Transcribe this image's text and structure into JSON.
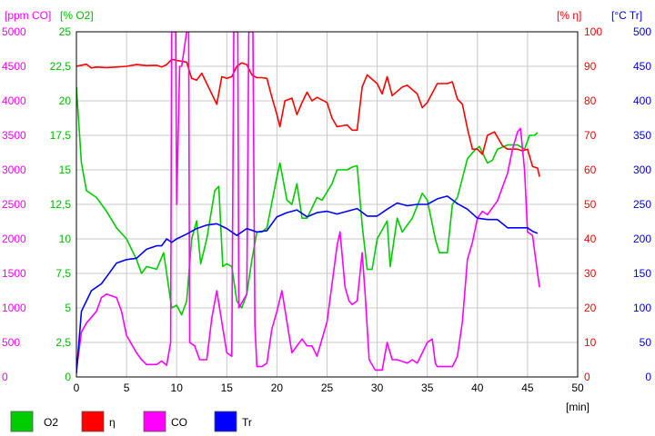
{
  "chart_data": {
    "type": "line",
    "grid": true,
    "legend_placement": "bottom",
    "x": {
      "unit": "[min]",
      "range": [
        0,
        50
      ],
      "ticks": [
        "0",
        "5",
        "10",
        "15",
        "20",
        "25",
        "30",
        "35",
        "40",
        "45",
        "50"
      ]
    },
    "axes": {
      "co": {
        "header": "[ppm CO]",
        "color": "#ff00ff",
        "range": [
          0,
          5000
        ],
        "ticks": [
          "0",
          "500",
          "1000",
          "1500",
          "2000",
          "2500",
          "3000",
          "3500",
          "4000",
          "4500",
          "5000"
        ]
      },
      "o2": {
        "header": "[% O2]",
        "color": "#00bb00",
        "range": [
          0,
          25
        ],
        "ticks": [
          "0",
          "2,5",
          "5",
          "7,5",
          "10",
          "12,5",
          "15",
          "17,5",
          "20",
          "22,5",
          "25"
        ]
      },
      "eta": {
        "header": "[% η]",
        "color": "#ff0000",
        "range": [
          0,
          100
        ],
        "ticks": [
          "0",
          "10",
          "20",
          "30",
          "40",
          "50",
          "60",
          "70",
          "80",
          "90",
          "100"
        ]
      },
      "tr": {
        "header": "[°C Tr]",
        "color": "#0000ff",
        "range": [
          0,
          500
        ],
        "ticks": [
          "0",
          "50",
          "100",
          "150",
          "200",
          "250",
          "300",
          "350",
          "400",
          "450",
          "500"
        ]
      }
    },
    "series": [
      {
        "name": "O2",
        "axis": "o2",
        "color": "#00cc00",
        "points": [
          [
            0,
            21
          ],
          [
            0.5,
            15.5
          ],
          [
            1,
            13.5
          ],
          [
            2,
            13
          ],
          [
            3,
            12
          ],
          [
            4,
            10.8
          ],
          [
            5,
            10
          ],
          [
            6,
            8.5
          ],
          [
            6.5,
            7.5
          ],
          [
            7,
            8
          ],
          [
            8,
            7.8
          ],
          [
            8.7,
            9
          ],
          [
            9,
            7.5
          ],
          [
            9.5,
            5
          ],
          [
            10,
            5.2
          ],
          [
            10.5,
            4.5
          ],
          [
            11,
            5.5
          ],
          [
            11.5,
            10
          ],
          [
            12,
            11.3
          ],
          [
            12.4,
            8.2
          ],
          [
            13,
            10
          ],
          [
            13.8,
            13.5
          ],
          [
            14.2,
            13.8
          ],
          [
            14.6,
            8
          ],
          [
            15,
            8.2
          ],
          [
            15.5,
            8
          ],
          [
            16,
            5.5
          ],
          [
            16.5,
            5
          ],
          [
            17,
            6
          ],
          [
            17.5,
            8.5
          ],
          [
            18,
            10.5
          ],
          [
            18.5,
            10.5
          ],
          [
            19,
            10.8
          ],
          [
            20,
            14.5
          ],
          [
            20.3,
            15.5
          ],
          [
            21,
            12.8
          ],
          [
            21.5,
            12.5
          ],
          [
            22,
            14
          ],
          [
            22.5,
            11.5
          ],
          [
            23,
            11.5
          ],
          [
            24,
            13
          ],
          [
            24.5,
            12.8
          ],
          [
            25.5,
            14
          ],
          [
            26,
            15
          ],
          [
            27,
            15
          ],
          [
            27.5,
            15.2
          ],
          [
            28,
            15.3
          ],
          [
            28.5,
            11
          ],
          [
            29,
            7.8
          ],
          [
            29.5,
            7.8
          ],
          [
            30,
            10
          ],
          [
            31,
            11.3
          ],
          [
            31.3,
            8
          ],
          [
            32,
            11.5
          ],
          [
            32.5,
            10.5
          ],
          [
            33.5,
            11.5
          ],
          [
            34.5,
            13.3
          ],
          [
            35,
            12.8
          ],
          [
            35.8,
            10
          ],
          [
            36.2,
            9
          ],
          [
            37,
            9
          ],
          [
            37.5,
            12.5
          ],
          [
            38,
            13
          ],
          [
            39,
            15.8
          ],
          [
            39.7,
            16.4
          ],
          [
            40.2,
            16.7
          ],
          [
            41,
            15.5
          ],
          [
            41.5,
            15.7
          ],
          [
            42,
            16.5
          ],
          [
            43,
            16.8
          ],
          [
            44,
            16.8
          ],
          [
            44.7,
            16.5
          ],
          [
            45.2,
            17.5
          ],
          [
            45.7,
            17.5
          ],
          [
            46,
            17.7
          ]
        ]
      },
      {
        "name": "η",
        "axis": "eta",
        "color": "#ff0000",
        "points": [
          [
            0,
            90
          ],
          [
            1,
            90.6
          ],
          [
            1.5,
            89.5
          ],
          [
            2,
            89.8
          ],
          [
            3,
            89.6
          ],
          [
            4,
            89.8
          ],
          [
            5,
            90
          ],
          [
            6,
            90.5
          ],
          [
            7,
            90.2
          ],
          [
            8,
            90.3
          ],
          [
            8.5,
            89.8
          ],
          [
            9,
            90.5
          ],
          [
            9.5,
            92
          ],
          [
            10,
            91.7
          ],
          [
            11,
            91.2
          ],
          [
            11.5,
            86.5
          ],
          [
            12,
            86
          ],
          [
            12.5,
            88
          ],
          [
            13.5,
            82
          ],
          [
            14,
            79
          ],
          [
            14.5,
            87
          ],
          [
            15,
            86.5
          ],
          [
            15.5,
            87
          ],
          [
            16,
            90
          ],
          [
            16.5,
            91
          ],
          [
            17,
            90.5
          ],
          [
            17.5,
            87.5
          ],
          [
            18,
            86.7
          ],
          [
            18.5,
            86.7
          ],
          [
            19,
            86.5
          ],
          [
            19.5,
            81
          ],
          [
            20,
            76
          ],
          [
            20.3,
            72.5
          ],
          [
            20.8,
            80
          ],
          [
            21.5,
            80.8
          ],
          [
            22,
            76
          ],
          [
            22.5,
            79.5
          ],
          [
            23,
            82.5
          ],
          [
            23.5,
            80
          ],
          [
            24,
            81
          ],
          [
            25,
            79.5
          ],
          [
            25.5,
            75
          ],
          [
            26,
            72.5
          ],
          [
            27,
            73
          ],
          [
            27.5,
            71.5
          ],
          [
            28,
            71.5
          ],
          [
            28.5,
            84
          ],
          [
            29,
            87.5
          ],
          [
            30,
            85
          ],
          [
            30.5,
            82
          ],
          [
            31,
            87
          ],
          [
            31.5,
            81.5
          ],
          [
            32.5,
            84
          ],
          [
            33,
            84.5
          ],
          [
            34,
            82
          ],
          [
            34.5,
            78
          ],
          [
            35,
            79.5
          ],
          [
            36,
            85
          ],
          [
            37,
            85
          ],
          [
            37.5,
            85.5
          ],
          [
            38,
            80.5
          ],
          [
            38.5,
            79
          ],
          [
            39,
            72
          ],
          [
            39.5,
            66
          ],
          [
            40,
            66
          ],
          [
            40.5,
            64.5
          ],
          [
            41,
            70
          ],
          [
            41.7,
            71
          ],
          [
            42.5,
            67
          ],
          [
            43,
            66
          ],
          [
            44,
            66
          ],
          [
            44.5,
            65.5
          ],
          [
            45,
            66
          ],
          [
            45.5,
            61
          ],
          [
            46,
            60.5
          ],
          [
            46.2,
            58
          ]
        ]
      },
      {
        "name": "CO",
        "axis": "co",
        "color": "#ff00ff",
        "points": [
          [
            0,
            100
          ],
          [
            0.5,
            650
          ],
          [
            1,
            780
          ],
          [
            2,
            950
          ],
          [
            2.5,
            1150
          ],
          [
            3,
            1200
          ],
          [
            4,
            1150
          ],
          [
            4.5,
            950
          ],
          [
            5,
            600
          ],
          [
            6,
            350
          ],
          [
            6.5,
            250
          ],
          [
            7,
            180
          ],
          [
            8,
            180
          ],
          [
            8.5,
            230
          ],
          [
            9,
            170
          ],
          [
            9.4,
            500
          ],
          [
            9.5,
            5000
          ],
          [
            9.9,
            5000
          ],
          [
            10,
            2500
          ],
          [
            10.3,
            4500
          ],
          [
            10.5,
            4500
          ],
          [
            11,
            5000
          ],
          [
            11.2,
            5000
          ],
          [
            11.3,
            500
          ],
          [
            11.8,
            450
          ],
          [
            12.3,
            250
          ],
          [
            13,
            250
          ],
          [
            13.5,
            850
          ],
          [
            14,
            1250
          ],
          [
            14.5,
            800
          ],
          [
            15,
            350
          ],
          [
            15.5,
            300
          ],
          [
            15.7,
            5000
          ],
          [
            16.1,
            5000
          ],
          [
            16.2,
            1000
          ],
          [
            17,
            1200
          ],
          [
            17.2,
            5000
          ],
          [
            17.6,
            5000
          ],
          [
            17.8,
            750
          ],
          [
            18,
            150
          ],
          [
            18.5,
            150
          ],
          [
            19,
            200
          ],
          [
            19.5,
            700
          ],
          [
            20,
            950
          ],
          [
            20.5,
            1250
          ],
          [
            21,
            800
          ],
          [
            21.5,
            350
          ],
          [
            22.5,
            550
          ],
          [
            23,
            450
          ],
          [
            23.5,
            450
          ],
          [
            24,
            300
          ],
          [
            25,
            800
          ],
          [
            26,
            1900
          ],
          [
            26.3,
            2100
          ],
          [
            26.8,
            1300
          ],
          [
            27.2,
            1100
          ],
          [
            27.5,
            1050
          ],
          [
            28,
            1100
          ],
          [
            28.5,
            1800
          ],
          [
            28.8,
            1200
          ],
          [
            29.2,
            250
          ],
          [
            29.8,
            100
          ],
          [
            30.5,
            100
          ],
          [
            31,
            500
          ],
          [
            31.5,
            250
          ],
          [
            32,
            250
          ],
          [
            33,
            200
          ],
          [
            33.5,
            250
          ],
          [
            34,
            200
          ],
          [
            35,
            500
          ],
          [
            35.5,
            550
          ],
          [
            35.8,
            200
          ],
          [
            36,
            150
          ],
          [
            37,
            150
          ],
          [
            37.5,
            150
          ],
          [
            38,
            300
          ],
          [
            38.5,
            800
          ],
          [
            39,
            1700
          ],
          [
            39.5,
            1950
          ],
          [
            40,
            2300
          ],
          [
            40.5,
            2400
          ],
          [
            41,
            2350
          ],
          [
            42,
            2550
          ],
          [
            43,
            2950
          ],
          [
            43.5,
            3300
          ],
          [
            44,
            3550
          ],
          [
            44.3,
            3600
          ],
          [
            44.7,
            3000
          ],
          [
            45,
            2100
          ],
          [
            45.5,
            2050
          ],
          [
            46,
            1500
          ],
          [
            46.2,
            1300
          ]
        ]
      },
      {
        "name": "Tr",
        "axis": "tr",
        "color": "#0000ff",
        "points": [
          [
            0,
            5
          ],
          [
            0.5,
            95
          ],
          [
            1,
            110
          ],
          [
            1.5,
            125
          ],
          [
            2,
            130
          ],
          [
            2.5,
            135
          ],
          [
            3,
            145
          ],
          [
            4,
            165
          ],
          [
            5,
            170
          ],
          [
            6,
            172
          ],
          [
            7,
            185
          ],
          [
            8,
            190
          ],
          [
            8.5,
            190
          ],
          [
            9,
            200
          ],
          [
            9.5,
            195
          ],
          [
            10,
            200
          ],
          [
            11,
            207
          ],
          [
            12,
            215
          ],
          [
            13,
            220
          ],
          [
            14,
            222
          ],
          [
            15,
            215
          ],
          [
            16,
            205
          ],
          [
            17,
            215
          ],
          [
            18,
            210
          ],
          [
            19,
            212
          ],
          [
            20,
            232
          ],
          [
            21,
            238
          ],
          [
            22,
            242
          ],
          [
            23,
            232
          ],
          [
            24,
            238
          ],
          [
            25,
            240
          ],
          [
            26,
            236
          ],
          [
            27,
            240
          ],
          [
            28,
            244
          ],
          [
            29,
            233
          ],
          [
            30,
            233
          ],
          [
            31,
            243
          ],
          [
            32,
            252
          ],
          [
            33,
            248
          ],
          [
            34,
            250
          ],
          [
            35,
            250
          ],
          [
            36,
            258
          ],
          [
            37,
            262
          ],
          [
            38,
            251
          ],
          [
            39,
            243
          ],
          [
            40,
            230
          ],
          [
            41,
            228
          ],
          [
            42,
            228
          ],
          [
            43,
            216
          ],
          [
            44,
            216
          ],
          [
            45,
            216
          ],
          [
            45.5,
            211
          ],
          [
            46,
            208
          ]
        ]
      }
    ]
  }
}
